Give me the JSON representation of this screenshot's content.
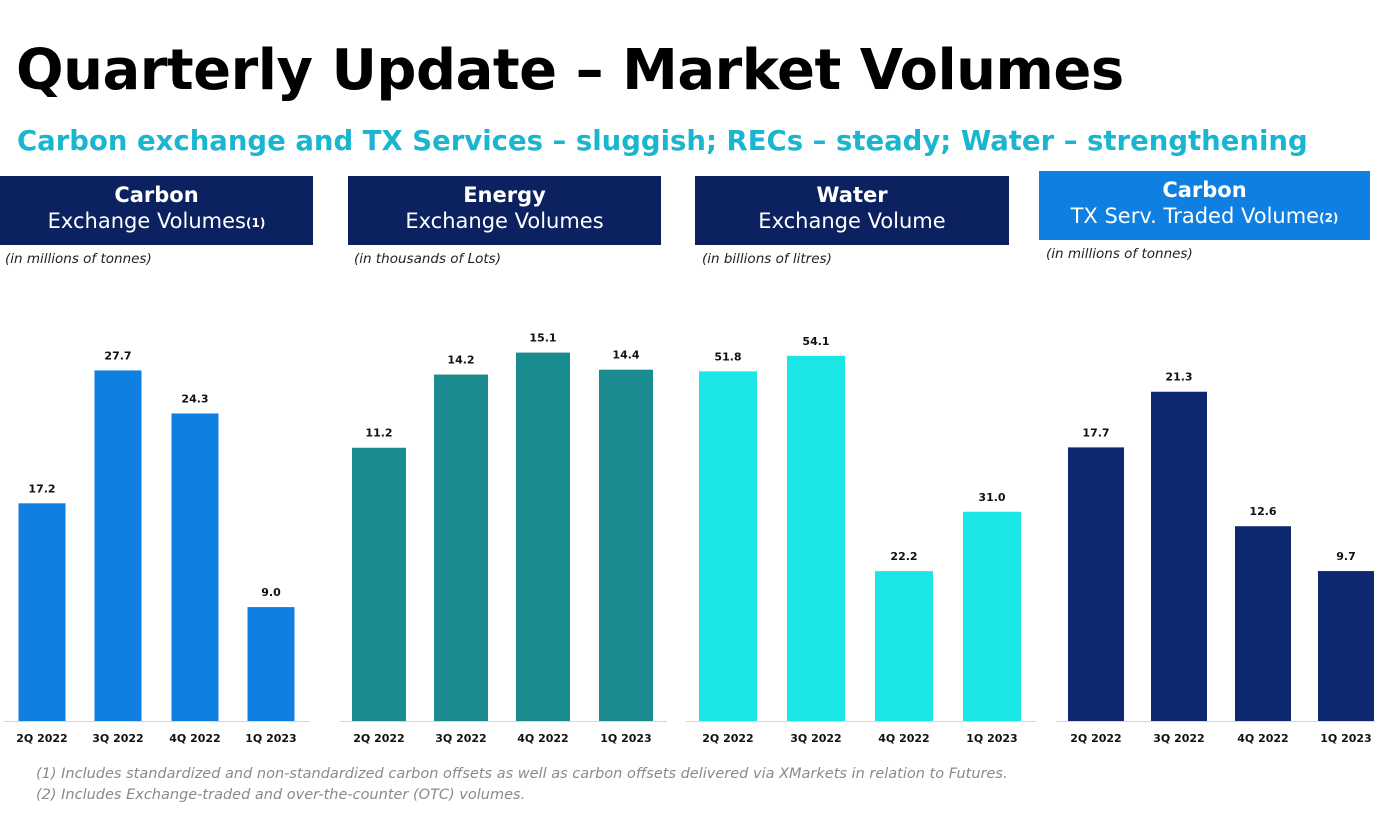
{
  "title": "Quarterly Update – Market Volumes",
  "subtitle": "Carbon exchange and TX Services – sluggish; RECs – steady; Water – strengthening",
  "panels": [
    {
      "header_line1": "Carbon",
      "header_line2": "Exchange Volumes",
      "header_sup": "(1)",
      "unit": "(in millions of tonnes)",
      "header_color": "#0c2260"
    },
    {
      "header_line1": "Energy",
      "header_line2": "Exchange Volumes",
      "header_sup": "",
      "unit": "(in thousands of Lots)",
      "header_color": "#0c2260"
    },
    {
      "header_line1": "Water",
      "header_line2": "Exchange Volume",
      "header_sup": "",
      "unit": "(in billions of litres)",
      "header_color": "#0c2260"
    },
    {
      "header_line1": "Carbon",
      "header_line2": "TX Serv. Traded Volume",
      "header_sup": "(2)",
      "unit": "(in millions of tonnes)",
      "header_color": "#0f7fe2"
    }
  ],
  "chart_data": [
    {
      "type": "bar",
      "categories": [
        "2Q 2022",
        "3Q 2022",
        "4Q 2022",
        "1Q 2023"
      ],
      "values": [
        17.2,
        27.7,
        24.3,
        9.0
      ],
      "labels": [
        "17.2",
        "27.7",
        "24.3",
        "9.0"
      ],
      "color": "#0f7fe2",
      "ylim": [
        0,
        32
      ]
    },
    {
      "type": "bar",
      "categories": [
        "2Q 2022",
        "3Q 2022",
        "4Q 2022",
        "1Q 2023"
      ],
      "values": [
        11.2,
        14.2,
        15.1,
        14.4
      ],
      "labels": [
        "11.2",
        "14.2",
        "15.1",
        "14.4"
      ],
      "color": "#1a8b8f",
      "ylim": [
        0,
        16.6
      ]
    },
    {
      "type": "bar",
      "categories": [
        "2Q 2022",
        "3Q 2022",
        "4Q 2022",
        "1Q 2023"
      ],
      "values": [
        51.8,
        54.1,
        22.2,
        31.0
      ],
      "labels": [
        "51.8",
        "54.1",
        "22.2",
        "31.0"
      ],
      "color": "#1ce6e4",
      "ylim": [
        0,
        60
      ]
    },
    {
      "type": "bar",
      "categories": [
        "2Q 2022",
        "3Q 2022",
        "4Q 2022",
        "1Q 2023"
      ],
      "values": [
        17.7,
        21.3,
        12.6,
        9.7
      ],
      "labels": [
        "17.7",
        "21.3",
        "12.6",
        "9.7"
      ],
      "color": "#0d2870",
      "ylim": [
        0,
        26.2
      ]
    }
  ],
  "footnotes": [
    "(1) Includes standardized and non-standardized carbon offsets as well as carbon offsets delivered via XMarkets in relation to Futures.",
    "(2) Includes Exchange-traded and over-the-counter (OTC) volumes."
  ]
}
